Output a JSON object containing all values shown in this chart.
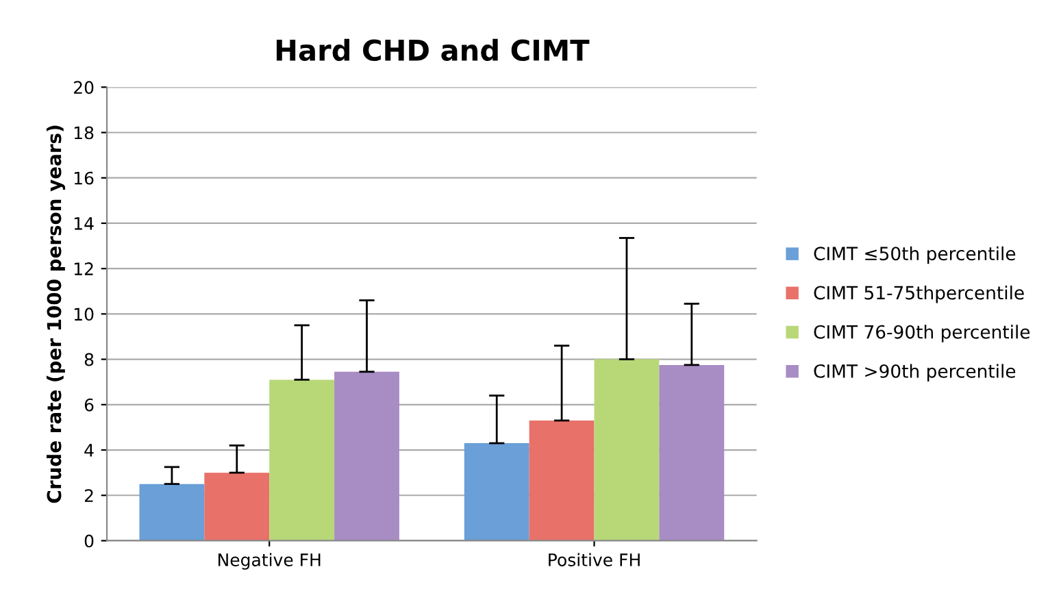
{
  "chart_data": {
    "type": "bar",
    "title": "Hard CHD and CIMT",
    "ylabel": "Crude rate (per 1000 person years)",
    "categories": [
      "Negative FH",
      "Positive FH"
    ],
    "series": [
      {
        "name": "CIMT ≤50th percentile",
        "color": "#6a9fd8",
        "values": [
          2.5,
          4.3
        ],
        "errors": [
          [
            2.5,
            3.25
          ],
          [
            4.3,
            6.4
          ]
        ]
      },
      {
        "name": "CIMT 51-75thpercentile",
        "color": "#e8716a",
        "values": [
          3.0,
          5.3
        ],
        "errors": [
          [
            3.0,
            4.2
          ],
          [
            5.3,
            8.6
          ]
        ]
      },
      {
        "name": "CIMT 76-90th percentile",
        "color": "#b8d878",
        "values": [
          7.1,
          8.0
        ],
        "errors": [
          [
            7.1,
            9.5
          ],
          [
            8.0,
            13.35
          ]
        ]
      },
      {
        "name": "CIMT >90th percentile",
        "color": "#a88cc4",
        "values": [
          7.45,
          7.75
        ],
        "errors": [
          [
            7.45,
            10.6
          ],
          [
            7.75,
            10.45
          ]
        ]
      }
    ],
    "ylim": [
      0,
      20
    ],
    "yticks": [
      0,
      2,
      4,
      6,
      8,
      10,
      12,
      14,
      16,
      18,
      20
    ],
    "grid": "y",
    "legend": "right"
  }
}
